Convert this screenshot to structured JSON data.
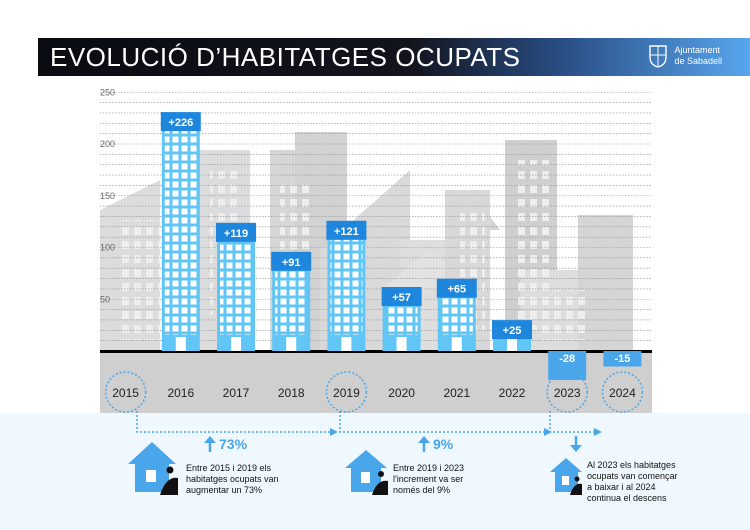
{
  "header": {
    "title": "EVOLUCIÓ D’HABITATGES OCUPATS",
    "logo_line1": "Ajuntament",
    "logo_line2": "de Sabadell"
  },
  "chart_data": {
    "type": "bar",
    "categories": [
      "2015",
      "2016",
      "2017",
      "2018",
      "2019",
      "2020",
      "2021",
      "2022",
      "2023",
      "2024"
    ],
    "values": [
      null,
      226,
      119,
      91,
      121,
      57,
      65,
      25,
      -28,
      -15
    ],
    "value_labels": [
      "",
      "+226",
      "+119",
      "+91",
      "+121",
      "+57",
      "+65",
      "+25",
      "-28",
      "-15"
    ],
    "yticks": [
      50,
      100,
      150,
      200,
      250
    ],
    "ylim": [
      -30,
      250
    ],
    "grid": true,
    "highlighted_years": [
      "2015",
      "2019",
      "2023",
      "2024"
    ]
  },
  "annotations": [
    {
      "pct": "73%",
      "direction": "up",
      "text": [
        "Entre 2015 i 2019 els",
        "habitatges ocupats van",
        "augmentar un 73%"
      ]
    },
    {
      "pct": "9%",
      "direction": "up",
      "text": [
        "Entre 2019 i 2023",
        "l'increment va ser",
        "només del 9%"
      ]
    },
    {
      "pct": "",
      "direction": "down",
      "text": [
        "Al 2023 els habitatges",
        "ocupats van començar",
        "a baixar i al 2024",
        "continua el descens"
      ]
    }
  ],
  "colors": {
    "accent": "#4aa6ea",
    "bar": "#61c6f6",
    "dark": "#111111",
    "skyline": "#d9d9d9"
  }
}
